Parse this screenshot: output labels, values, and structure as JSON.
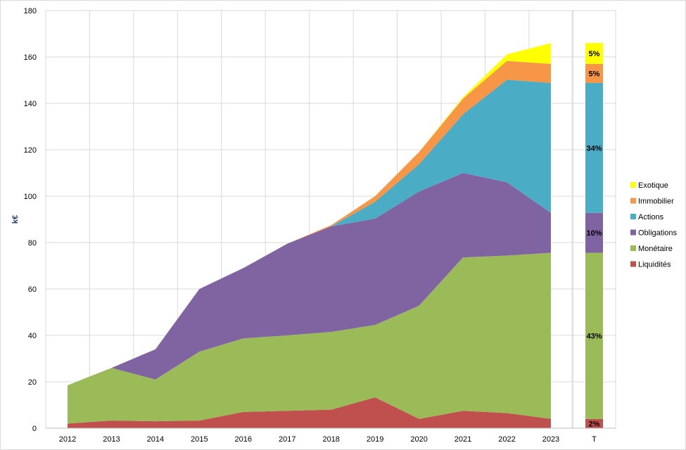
{
  "chart_data": {
    "type": "area",
    "stacked": true,
    "title": "",
    "xlabel": "",
    "ylabel": "k€",
    "ylim": [
      0,
      180
    ],
    "yticks": [
      0,
      20,
      40,
      60,
      80,
      100,
      120,
      140,
      160,
      180
    ],
    "grid": true,
    "legend_position": "right",
    "categories": [
      "2012",
      "2013",
      "2014",
      "2015",
      "2016",
      "2017",
      "2018",
      "2019",
      "2020",
      "2021",
      "2022",
      "2023"
    ],
    "series": [
      {
        "name": "Liquidités",
        "color": "#c0504d",
        "values": [
          2,
          3.3,
          3,
          3.3,
          7,
          7.5,
          8,
          13.3,
          4,
          7.5,
          6.5,
          4
        ]
      },
      {
        "name": "Monétaire",
        "color": "#9bbb59",
        "values": [
          16.5,
          22.7,
          18,
          29.7,
          31.7,
          32.5,
          33.5,
          31.2,
          48.8,
          66.1,
          67.9,
          71.6
        ]
      },
      {
        "name": "Obligations",
        "color": "#8064a2",
        "values": [
          0,
          0,
          13,
          27,
          30.3,
          39.5,
          45.5,
          45.8,
          49.2,
          36.4,
          31.6,
          17.2
        ]
      },
      {
        "name": "Actions",
        "color": "#4bacc6",
        "values": [
          0,
          0,
          0,
          0,
          0,
          0,
          0,
          7.3,
          11.8,
          25.3,
          44.2,
          56
        ]
      },
      {
        "name": "Immobilier",
        "color": "#f79646",
        "values": [
          0,
          0,
          0,
          0,
          0,
          0,
          0.5,
          2.4,
          5.2,
          6.7,
          8.1,
          8.2
        ]
      },
      {
        "name": "Exotique",
        "color": "#ffff00",
        "values": [
          0,
          0,
          0,
          0,
          0,
          0,
          0,
          0,
          0,
          0.6,
          2.8,
          9
        ]
      }
    ],
    "total_bar": {
      "label": "T",
      "values": [
        4,
        71.6,
        17.2,
        56,
        8.2,
        9
      ],
      "percent_labels": [
        "2%",
        "43%",
        "10%",
        "34%",
        "5%",
        "5%"
      ]
    }
  }
}
